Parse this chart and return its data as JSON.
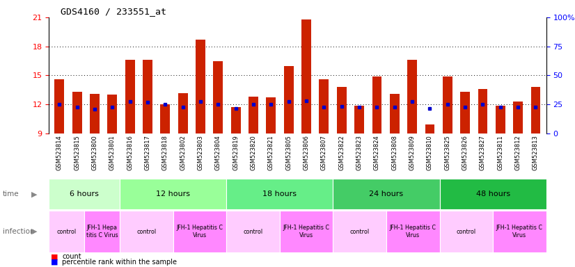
{
  "title": "GDS4160 / 233551_at",
  "samples": [
    "GSM523814",
    "GSM523815",
    "GSM523800",
    "GSM523801",
    "GSM523816",
    "GSM523817",
    "GSM523818",
    "GSM523802",
    "GSM523803",
    "GSM523804",
    "GSM523819",
    "GSM523820",
    "GSM523821",
    "GSM523805",
    "GSM523806",
    "GSM523807",
    "GSM523822",
    "GSM523823",
    "GSM523824",
    "GSM523808",
    "GSM523809",
    "GSM523810",
    "GSM523825",
    "GSM523826",
    "GSM523827",
    "GSM523811",
    "GSM523812",
    "GSM523813"
  ],
  "count_values": [
    14.6,
    13.3,
    13.1,
    13.0,
    16.6,
    16.6,
    12.0,
    13.2,
    18.7,
    16.5,
    11.7,
    12.8,
    12.7,
    16.0,
    20.8,
    14.6,
    13.8,
    11.9,
    14.9,
    13.1,
    16.6,
    9.9,
    14.9,
    13.3,
    13.6,
    11.9,
    12.3,
    13.8
  ],
  "percentile_values": [
    12.0,
    11.7,
    11.5,
    11.7,
    12.3,
    12.2,
    12.0,
    11.7,
    12.3,
    12.0,
    11.6,
    12.0,
    12.0,
    12.3,
    12.4,
    11.7,
    11.8,
    11.7,
    11.7,
    11.7,
    12.3,
    11.6,
    12.0,
    11.7,
    12.0,
    11.7,
    11.7,
    11.7
  ],
  "time_groups": [
    {
      "label": "6 hours",
      "start": 0,
      "end": 4,
      "color": "#ccffcc"
    },
    {
      "label": "12 hours",
      "start": 4,
      "end": 10,
      "color": "#99ff99"
    },
    {
      "label": "18 hours",
      "start": 10,
      "end": 16,
      "color": "#66ee88"
    },
    {
      "label": "24 hours",
      "start": 16,
      "end": 22,
      "color": "#44cc66"
    },
    {
      "label": "48 hours",
      "start": 22,
      "end": 28,
      "color": "#22bb44"
    }
  ],
  "infection_groups": [
    {
      "label": "control",
      "start": 0,
      "end": 2,
      "ctrl": true
    },
    {
      "label": "JFH-1 Hepa\ntitis C Virus",
      "start": 2,
      "end": 4,
      "ctrl": false
    },
    {
      "label": "control",
      "start": 4,
      "end": 7,
      "ctrl": true
    },
    {
      "label": "JFH-1 Hepatitis C\nVirus",
      "start": 7,
      "end": 10,
      "ctrl": false
    },
    {
      "label": "control",
      "start": 10,
      "end": 13,
      "ctrl": true
    },
    {
      "label": "JFH-1 Hepatitis C\nVirus",
      "start": 13,
      "end": 16,
      "ctrl": false
    },
    {
      "label": "control",
      "start": 16,
      "end": 19,
      "ctrl": true
    },
    {
      "label": "JFH-1 Hepatitis C\nVirus",
      "start": 19,
      "end": 22,
      "ctrl": false
    },
    {
      "label": "control",
      "start": 22,
      "end": 25,
      "ctrl": true
    },
    {
      "label": "JFH-1 Hepatitis C\nVirus",
      "start": 25,
      "end": 28,
      "ctrl": false
    }
  ],
  "ylim": [
    9,
    21
  ],
  "yticks_left": [
    9,
    12,
    15,
    18,
    21
  ],
  "yticks_right": [
    0,
    25,
    50,
    75,
    100
  ],
  "bar_color": "#cc2200",
  "dot_color": "#0000cc",
  "bar_width": 0.55,
  "ctrl_color": "#ffccff",
  "virus_color": "#ff88ff",
  "background_color": "#ffffff",
  "tick_bg_color": "#d8d8d8"
}
